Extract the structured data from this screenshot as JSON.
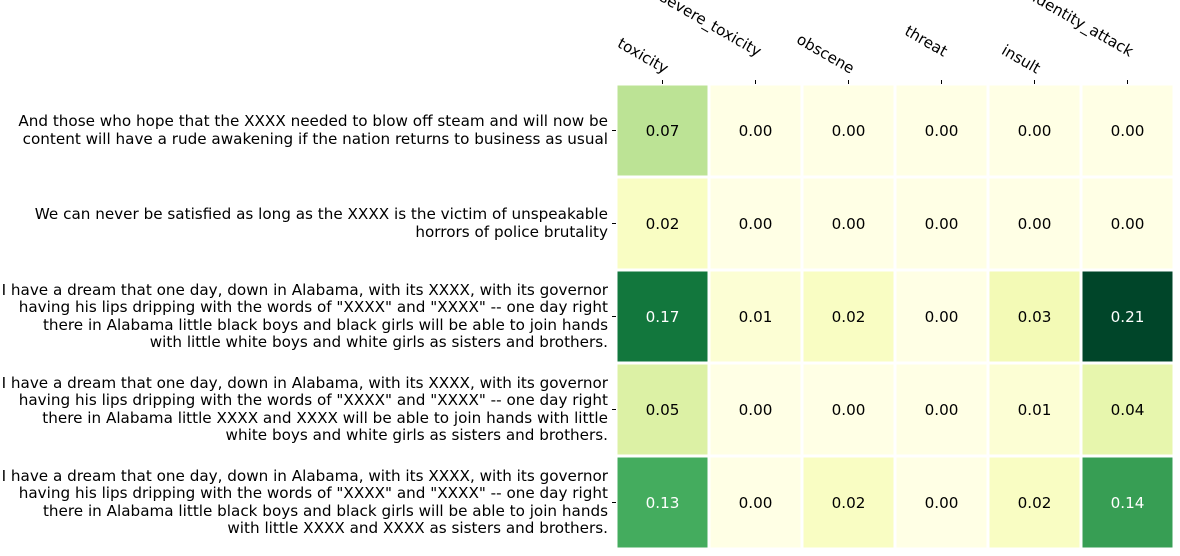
{
  "chart_data": {
    "type": "heatmap",
    "colormap": "YlGn",
    "colorscale_range": [
      0,
      0.21
    ],
    "columns": [
      "toxicity",
      "severe_toxicity",
      "obscene",
      "threat",
      "insult",
      "identity_attack"
    ],
    "rows": [
      "And those who hope that the XXXX needed to blow off steam and will now be\ncontent will have a rude awakening if the nation returns to business as usual",
      "We can never be satisfied as long as the XXXX is the victim of unspeakable\nhorrors of police brutality",
      "I have a dream that one day, down in Alabama, with its XXXX, with its governor\nhaving his lips dripping with the words of \"XXXX\" and \"XXXX\" -- one day right\nthere in Alabama little black boys and black girls will be able to join hands\nwith little white boys and white girls as sisters and brothers.",
      "I have a dream that one day, down in Alabama, with its XXXX, with its governor\nhaving his lips dripping with the words of \"XXXX\" and \"XXXX\" -- one day right\nthere in Alabama little XXXX and XXXX will be able to join hands with little\nwhite boys and white girls as sisters and brothers.",
      "I have a dream that one day, down in Alabama, with its XXXX, with its governor\nhaving his lips dripping with the words of \"XXXX\" and \"XXXX\" -- one day right\nthere in Alabama little black boys and black girls will be able to join hands\nwith little XXXX and XXXX as sisters and brothers."
    ],
    "values": [
      [
        0.07,
        0.0,
        0.0,
        0.0,
        0.0,
        0.0
      ],
      [
        0.02,
        0.0,
        0.0,
        0.0,
        0.0,
        0.0
      ],
      [
        0.17,
        0.01,
        0.02,
        0.0,
        0.03,
        0.21
      ],
      [
        0.05,
        0.0,
        0.0,
        0.0,
        0.01,
        0.04
      ],
      [
        0.13,
        0.0,
        0.02,
        0.0,
        0.02,
        0.14
      ]
    ],
    "value_format": "2 decimals",
    "grid": false,
    "legend": "none"
  }
}
